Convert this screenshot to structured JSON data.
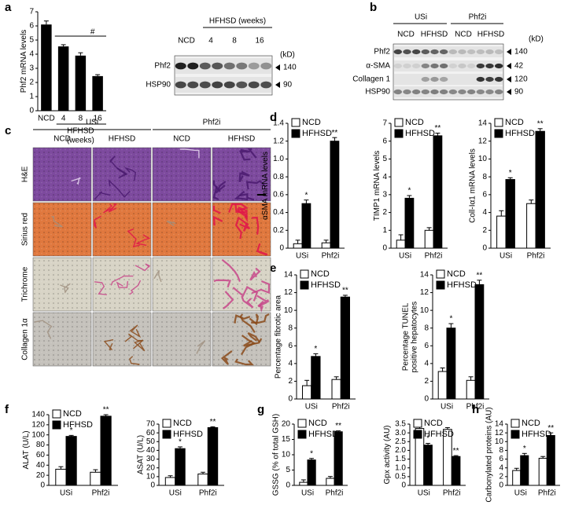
{
  "figure": {
    "panel_labels": [
      "a",
      "b",
      "c",
      "d",
      "e",
      "f",
      "g",
      "h"
    ],
    "blot_a": {
      "header": "HFHSD (weeks)",
      "lanes": [
        "NCD",
        "4",
        "8",
        "16"
      ],
      "rows": [
        "Phf2",
        "HSP90"
      ],
      "unit": "(kD)",
      "markers": [
        "140",
        "90"
      ]
    },
    "blot_b": {
      "groups": [
        "USi",
        "Phf2i"
      ],
      "lanes": [
        "NCD",
        "HFHSD",
        "NCD",
        "HFHSD"
      ],
      "rows": [
        "Phf2",
        "α-SMA",
        "Collagen 1",
        "HSP90"
      ],
      "unit": "(kD)",
      "markers": [
        "140",
        "42",
        "120",
        "90"
      ]
    },
    "histology": {
      "groups": [
        "USi",
        "Phf2i"
      ],
      "columns": [
        "NCD",
        "HFHSD",
        "NCD",
        "HFHSD"
      ],
      "rows": [
        "H&E",
        "Sirius red",
        "Trichrome",
        "Collagen 1α"
      ]
    }
  },
  "chart_data": [
    {
      "type": "bar",
      "ylabel": "Phf2 mRNA levels",
      "categories": [
        "NCD",
        "4",
        "8",
        "16"
      ],
      "values": [
        6.1,
        4.55,
        3.9,
        2.45
      ],
      "errors": [
        0.25,
        0.12,
        0.2,
        0.1
      ],
      "color": "#000000",
      "xlabel": [
        "HFHSD",
        "(weeks)"
      ],
      "annotation": "#",
      "ylim": [
        0,
        7
      ],
      "yticks": [
        0,
        1,
        2,
        3,
        4,
        5,
        6,
        7
      ]
    },
    {
      "type": "bar",
      "ylabel": "αSMA mRNA levels",
      "categories": [
        "USi",
        "Phf2i"
      ],
      "series": [
        {
          "name": "NCD",
          "color": "#ffffff",
          "values": [
            0.05,
            0.06
          ],
          "errors": [
            0.04,
            0.03
          ]
        },
        {
          "name": "HFHSD",
          "color": "#000000",
          "values": [
            0.5,
            1.2
          ],
          "errors": [
            0.04,
            0.04
          ]
        }
      ],
      "annotations": [
        "*",
        "**"
      ],
      "ylim": [
        0,
        1.4
      ],
      "yticks": [
        0,
        0.2,
        0.4,
        0.6,
        0.8,
        {
          "value": 1,
          "label": "1.0"
        },
        1.2,
        1.4
      ]
    },
    {
      "type": "bar",
      "ylabel": "TIMP1 mRNA levels",
      "categories": [
        "USi",
        "Phf2i"
      ],
      "series": [
        {
          "name": "NCD",
          "color": "#ffffff",
          "values": [
            0.45,
            1.0
          ],
          "errors": [
            0.3,
            0.15
          ]
        },
        {
          "name": "HFHSD",
          "color": "#000000",
          "values": [
            2.8,
            6.3
          ],
          "errors": [
            0.15,
            0.15
          ]
        }
      ],
      "annotations": [
        "*",
        "**"
      ],
      "ylim": [
        0,
        7
      ],
      "yticks": [
        0,
        1,
        2,
        3,
        4,
        5,
        6,
        7
      ]
    },
    {
      "type": "bar",
      "ylabel": "Coll-Iα1 mRNA levels",
      "categories": [
        "USi",
        "Phf2i"
      ],
      "series": [
        {
          "name": "NCD",
          "color": "#ffffff",
          "values": [
            3.6,
            5.0
          ],
          "errors": [
            0.6,
            0.4
          ]
        },
        {
          "name": "HFHSD",
          "color": "#000000",
          "values": [
            7.7,
            13.1
          ],
          "errors": [
            0.2,
            0.3
          ]
        }
      ],
      "annotations": [
        "*",
        "**"
      ],
      "ylim": [
        0,
        14
      ],
      "yticks": [
        0,
        2,
        4,
        6,
        8,
        10,
        12,
        14
      ]
    },
    {
      "type": "bar",
      "ylabel": "Percentage fibrotic area",
      "categories": [
        "USi",
        "Phf2i"
      ],
      "series": [
        {
          "name": "NCD",
          "color": "#ffffff",
          "values": [
            1.5,
            2.2
          ],
          "errors": [
            0.6,
            0.3
          ]
        },
        {
          "name": "HFHSD",
          "color": "#000000",
          "values": [
            4.8,
            11.5
          ],
          "errors": [
            0.3,
            0.2
          ]
        }
      ],
      "annotations": [
        "*",
        "**"
      ],
      "ylim": [
        0,
        14
      ],
      "yticks": [
        0,
        2,
        4,
        6,
        8,
        10,
        12,
        14
      ]
    },
    {
      "type": "bar",
      "ylabel": [
        "Percentage TUNEL",
        "positive hepatocytes"
      ],
      "categories": [
        "USi",
        "Phf2i"
      ],
      "series": [
        {
          "name": "NCD",
          "color": "#ffffff",
          "values": [
            3.1,
            2.1
          ],
          "errors": [
            0.4,
            0.4
          ]
        },
        {
          "name": "HFHSD",
          "color": "#000000",
          "values": [
            8.0,
            12.9
          ],
          "errors": [
            0.5,
            0.5
          ]
        }
      ],
      "annotations": [
        "*",
        "**"
      ],
      "ylim": [
        0,
        14
      ],
      "yticks": [
        0,
        2,
        4,
        6,
        8,
        10,
        12,
        14
      ]
    },
    {
      "type": "bar",
      "ylabel": "ALAT (U/L)",
      "categories": [
        "USi",
        "Phf2i"
      ],
      "series": [
        {
          "name": "NCD",
          "color": "#ffffff",
          "values": [
            32,
            26
          ],
          "errors": [
            5,
            5
          ]
        },
        {
          "name": "HFHSD",
          "color": "#000000",
          "values": [
            97,
            137
          ],
          "errors": [
            2,
            3
          ]
        }
      ],
      "annotations": [
        "*",
        "**"
      ],
      "ylim": [
        0,
        140
      ],
      "yticks": [
        0,
        20,
        40,
        60,
        80,
        100,
        120,
        140
      ]
    },
    {
      "type": "bar",
      "ylabel": "ASAT (U/L)",
      "categories": [
        "USi",
        "Phf2i"
      ],
      "series": [
        {
          "name": "NCD",
          "color": "#ffffff",
          "values": [
            9,
            13
          ],
          "errors": [
            2,
            2
          ]
        },
        {
          "name": "HFHSD",
          "color": "#000000",
          "values": [
            42,
            66
          ],
          "errors": [
            2,
            1
          ]
        }
      ],
      "annotations": [
        "*",
        "**"
      ],
      "ylim": [
        0,
        70
      ],
      "yticks": [
        0,
        10,
        20,
        30,
        40,
        50,
        60,
        70
      ]
    },
    {
      "type": "bar",
      "ylabel": "GSSG (% of total GSH)",
      "categories": [
        "USi",
        "Phf2i"
      ],
      "series": [
        {
          "name": "NCD",
          "color": "#ffffff",
          "values": [
            1.0,
            2.3
          ],
          "errors": [
            0.8,
            0.6
          ]
        },
        {
          "name": "HFHSD",
          "color": "#000000",
          "values": [
            8.3,
            17.5
          ],
          "errors": [
            0.5,
            0.3
          ]
        }
      ],
      "annotations": [
        "*",
        "**"
      ],
      "ylim": [
        0,
        20
      ],
      "yticks": [
        0,
        5,
        10,
        15,
        20
      ]
    },
    {
      "type": "bar",
      "ylabel": "Gpx activity (AU)",
      "categories": [
        "USi",
        "Phf2i"
      ],
      "series": [
        {
          "name": "NCD",
          "color": "#ffffff",
          "values": [
            3.25,
            3.2
          ],
          "errors": [
            0.1,
            0.1
          ]
        },
        {
          "name": "HFHSD",
          "color": "#000000",
          "values": [
            2.3,
            1.65
          ],
          "errors": [
            0.1,
            0.05
          ]
        }
      ],
      "annotations": [
        "*",
        "**"
      ],
      "ylim": [
        0,
        3.5
      ],
      "yticks": [
        0,
        0.5,
        {
          "value": 1,
          "label": "1.0"
        },
        1.5,
        {
          "value": 2,
          "label": "2.0"
        },
        2.5,
        {
          "value": 3,
          "label": "3.0"
        },
        3.5
      ]
    },
    {
      "type": "bar",
      "ylabel": "Carbonylated proteins (AU)",
      "categories": [
        "USi",
        "Phf2i"
      ],
      "series": [
        {
          "name": "NCD",
          "color": "#ffffff",
          "values": [
            3.4,
            6.2
          ],
          "errors": [
            0.5,
            0.4
          ]
        },
        {
          "name": "HFHSD",
          "color": "#000000",
          "values": [
            6.8,
            11.4
          ],
          "errors": [
            0.5,
            0.6
          ]
        }
      ],
      "annotations": [
        "*",
        "**"
      ],
      "ylim": [
        0,
        14
      ],
      "yticks": [
        0,
        2,
        4,
        6,
        8,
        10,
        12,
        14
      ]
    }
  ]
}
